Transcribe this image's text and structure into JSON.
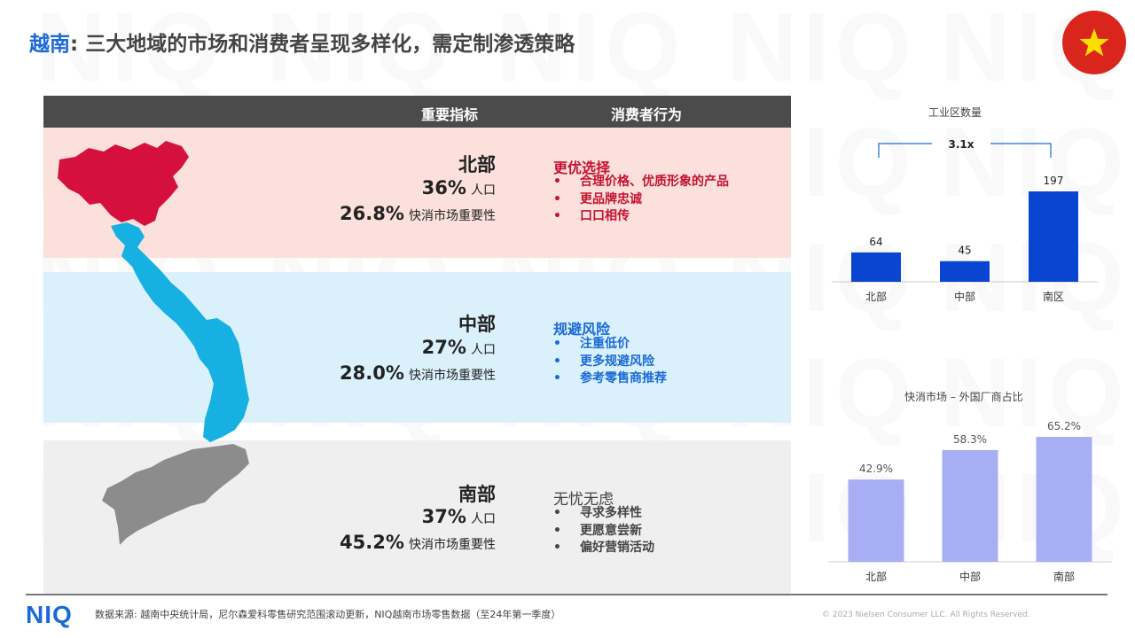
{
  "title": {
    "country": "越南",
    "rest": ": 三大地域的市场和消费者呈现多样化，需定制渗透策略"
  },
  "watermark_text": "NIQ",
  "table": {
    "col1": "重要指标",
    "col2": "消费者行为"
  },
  "regions": [
    {
      "name": "北部",
      "population": "36%",
      "population_label": "人口",
      "fmcg_share": "26.8%",
      "fmcg_label": "快消市场重要性",
      "behavior_title": "更优选择",
      "behaviors": [
        "合理价格、优质形象的产品",
        "更品牌忠诚",
        "口口相传"
      ],
      "color": "#c41230"
    },
    {
      "name": "中部",
      "population": "27%",
      "population_label": "人口",
      "fmcg_share": "28.0%",
      "fmcg_label": "快消市场重要性",
      "behavior_title": "规避风险",
      "behaviors": [
        "注重低价",
        "更多规避风险",
        "参考零售商推荐"
      ],
      "color": "#1b6ad6"
    },
    {
      "name": "南部",
      "population": "37%",
      "population_label": "人口",
      "fmcg_share": "45.2%",
      "fmcg_label": "快消市场重要性",
      "behavior_title": "无忧无虑",
      "behaviors": [
        "寻求多样性",
        "更愿意尝新",
        "偏好营销活动"
      ],
      "color": "#444444"
    }
  ],
  "chart_data": [
    {
      "type": "bar",
      "title": "工业区数量",
      "categories": [
        "北部",
        "中部",
        "南区"
      ],
      "values": [
        64,
        45,
        197
      ],
      "annotation": "3.1x",
      "color": "#0a45d1"
    },
    {
      "type": "bar",
      "title": "快消市场 – 外国厂商占比",
      "categories": [
        "北部",
        "中部",
        "南部"
      ],
      "values": [
        42.9,
        58.3,
        65.2
      ],
      "value_suffix": "%",
      "color": "#a7aef3"
    }
  ],
  "footer": {
    "logo": "NIQ",
    "source": "数据来源: 越南中央统计局，尼尔森爱科零售研究范围滚动更新，NIQ越南市场零售数据（至24年第一季度）",
    "copyright": "© 2023 Nielsen Consumer LLC. All Rights Reserved."
  }
}
